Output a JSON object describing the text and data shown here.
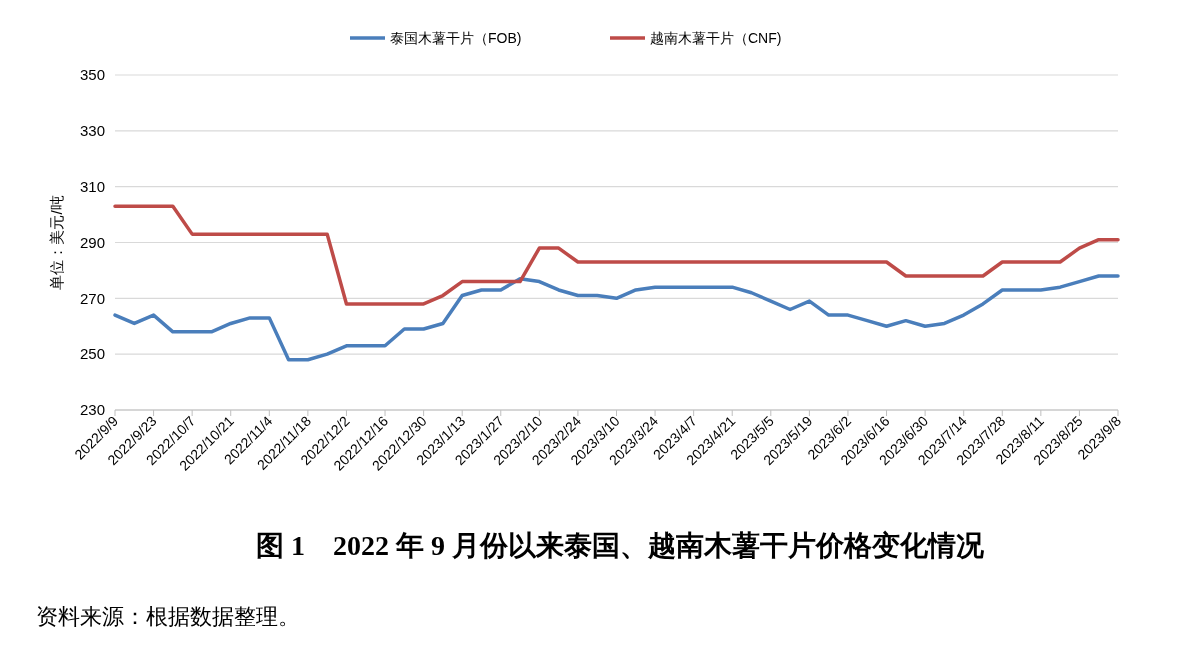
{
  "chart_data": {
    "type": "line",
    "title": "图 1　2022 年 9 月份以来泰国、越南木薯干片价格变化情况",
    "ylabel": "单位：美元/吨",
    "categories": [
      "2022/9/9",
      null,
      "2022/9/23",
      null,
      "2022/10/7",
      null,
      "2022/10/21",
      null,
      "2022/11/4",
      null,
      "2022/11/18",
      null,
      "2022/12/2",
      null,
      "2022/12/16",
      null,
      "2022/12/30",
      null,
      "2023/1/13",
      null,
      "2023/1/27",
      null,
      "2023/2/10",
      null,
      "2023/2/24",
      null,
      "2023/3/10",
      null,
      "2023/3/24",
      null,
      "2023/4/7",
      null,
      "2023/4/21",
      null,
      "2023/5/5",
      null,
      "2023/5/19",
      null,
      "2023/6/2",
      null,
      "2023/6/16",
      null,
      "2023/6/30",
      null,
      "2023/7/14",
      null,
      "2023/7/28",
      null,
      "2023/8/11",
      null,
      "2023/8/25",
      null,
      "2023/9/8"
    ],
    "series": [
      {
        "name": "泰国木薯干片（FOB)",
        "color": "#4a7ebb",
        "values": [
          264,
          261,
          264,
          258,
          258,
          258,
          261,
          263,
          263,
          248,
          248,
          250,
          253,
          253,
          253,
          259,
          259,
          261,
          271,
          273,
          273,
          277,
          276,
          273,
          271,
          271,
          270,
          273,
          274,
          274,
          274,
          274,
          274,
          272,
          269,
          266,
          269,
          264,
          264,
          262,
          260,
          262,
          260,
          261,
          264,
          268,
          273,
          273,
          273,
          274,
          276,
          278,
          278
        ]
      },
      {
        "name": "越南木薯干片（CNF)",
        "color": "#be4b48",
        "values": [
          303,
          303,
          303,
          303,
          293,
          293,
          293,
          293,
          293,
          293,
          293,
          293,
          268,
          268,
          268,
          268,
          268,
          271,
          276,
          276,
          276,
          276,
          288,
          288,
          283,
          283,
          283,
          283,
          283,
          283,
          283,
          283,
          283,
          283,
          283,
          283,
          283,
          283,
          283,
          283,
          283,
          278,
          278,
          278,
          278,
          278,
          283,
          283,
          283,
          283,
          288,
          291,
          291
        ]
      }
    ],
    "ylim": [
      230,
      350
    ],
    "yticks": [
      230,
      250,
      270,
      290,
      310,
      330,
      350
    ],
    "grid": "y",
    "legend": "top",
    "marker": "none",
    "line_style": "solid",
    "annotations": [
      "资料来源：根据数据整理。"
    ]
  }
}
